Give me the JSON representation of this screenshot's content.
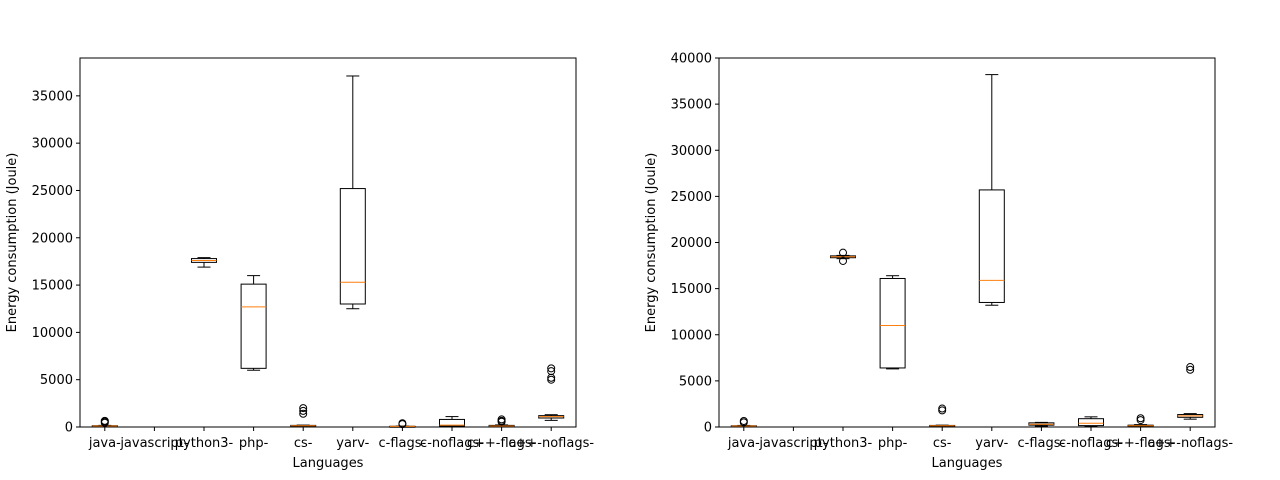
{
  "chart_data": [
    {
      "type": "boxplot",
      "title": "",
      "xlabel": "Languages",
      "ylabel": "Energy consumption (Joule)",
      "ylim": [
        0,
        39000
      ],
      "yticks": [
        0,
        5000,
        10000,
        15000,
        20000,
        25000,
        30000,
        35000
      ],
      "grid": false,
      "categories": [
        "java-",
        "javascript-",
        "python3-",
        "php-",
        "cs-",
        "yarv-",
        "c-flags-",
        "c-noflags-",
        "c++-flags-",
        "c++-noflags-"
      ],
      "boxes": [
        {
          "whislo": 60,
          "q1": 80,
          "med": 110,
          "q3": 140,
          "whishi": 170,
          "fliers": [
            450,
            550,
            650
          ]
        },
        {
          "whislo": null,
          "q1": null,
          "med": null,
          "q3": null,
          "whishi": null,
          "fliers": []
        },
        {
          "whislo": 16900,
          "q1": 17400,
          "med": 17600,
          "q3": 17800,
          "whishi": 17900,
          "fliers": []
        },
        {
          "whislo": 6000,
          "q1": 6200,
          "med": 12700,
          "q3": 15100,
          "whishi": 16000,
          "fliers": []
        },
        {
          "whislo": 60,
          "q1": 90,
          "med": 130,
          "q3": 170,
          "whishi": 200,
          "fliers": [
            1400,
            1700,
            2000
          ]
        },
        {
          "whislo": 12500,
          "q1": 13000,
          "med": 15300,
          "q3": 25200,
          "whishi": 37100,
          "fliers": []
        },
        {
          "whislo": 20,
          "q1": 40,
          "med": 60,
          "q3": 80,
          "whishi": 100,
          "fliers": [
            300,
            400
          ]
        },
        {
          "whislo": 50,
          "q1": 100,
          "med": 200,
          "q3": 800,
          "whishi": 1100,
          "fliers": []
        },
        {
          "whislo": 40,
          "q1": 70,
          "med": 110,
          "q3": 170,
          "whishi": 220,
          "fliers": [
            550,
            650,
            800
          ]
        },
        {
          "whislo": 700,
          "q1": 950,
          "med": 1100,
          "q3": 1200,
          "whishi": 1300,
          "fliers": [
            5000,
            5200,
            5900,
            6200
          ]
        }
      ]
    },
    {
      "type": "boxplot",
      "title": "",
      "xlabel": "Languages",
      "ylabel": "Energy consumption (Joule)",
      "ylim": [
        0,
        40000
      ],
      "yticks": [
        0,
        5000,
        10000,
        15000,
        20000,
        25000,
        30000,
        35000,
        40000
      ],
      "grid": false,
      "categories": [
        "java-",
        "javascript-",
        "python3-",
        "php-",
        "cs-",
        "yarv-",
        "c-flags-",
        "c-noflags-",
        "c++-flags-",
        "c++-noflags-"
      ],
      "boxes": [
        {
          "whislo": 60,
          "q1": 80,
          "med": 110,
          "q3": 140,
          "whislo2": null,
          "whishi": 170,
          "fliers": [
            500,
            650
          ]
        },
        {
          "whislo": null,
          "q1": null,
          "med": null,
          "q3": null,
          "whishi": null,
          "fliers": []
        },
        {
          "whislo": 18250,
          "q1": 18350,
          "med": 18450,
          "q3": 18550,
          "whishi": 18600,
          "fliers": [
            18000,
            18900
          ]
        },
        {
          "whislo": 6300,
          "q1": 6400,
          "med": 11000,
          "q3": 16100,
          "whishi": 16400,
          "fliers": []
        },
        {
          "whislo": 60,
          "q1": 90,
          "med": 130,
          "q3": 170,
          "whishi": 200,
          "fliers": [
            1800,
            2000
          ]
        },
        {
          "whislo": 13200,
          "q1": 13500,
          "med": 15900,
          "q3": 25700,
          "whishi": 38200,
          "fliers": []
        },
        {
          "whislo": 100,
          "q1": 200,
          "med": 300,
          "q3": 450,
          "whishi": 500,
          "fliers": []
        },
        {
          "whislo": 100,
          "q1": 150,
          "med": 400,
          "q3": 900,
          "whishi": 1100,
          "fliers": []
        },
        {
          "whislo": 60,
          "q1": 90,
          "med": 140,
          "q3": 200,
          "whishi": 260,
          "fliers": [
            750,
            950
          ]
        },
        {
          "whislo": 850,
          "q1": 1050,
          "med": 1200,
          "q3": 1350,
          "whishi": 1450,
          "fliers": [
            6200,
            6500
          ]
        }
      ]
    }
  ]
}
